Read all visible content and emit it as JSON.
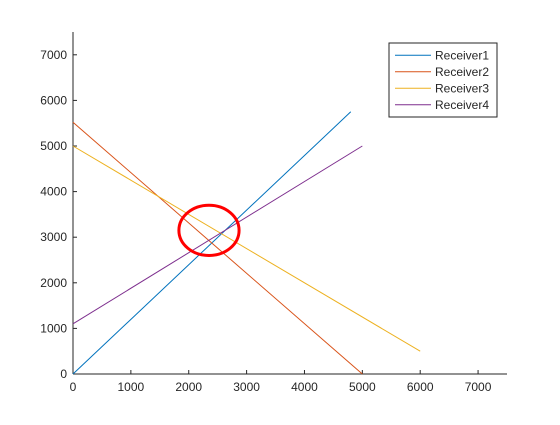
{
  "chart_data": {
    "type": "line",
    "xlim": [
      0,
      7500
    ],
    "ylim": [
      0,
      7500
    ],
    "x_ticks": [
      0,
      1000,
      2000,
      3000,
      4000,
      5000,
      6000,
      7000
    ],
    "y_ticks": [
      0,
      1000,
      2000,
      3000,
      4000,
      5000,
      6000,
      7000
    ],
    "x_tick_labels": [
      "0",
      "1000",
      "2000",
      "3000",
      "4000",
      "5000",
      "6000",
      "7000"
    ],
    "y_tick_labels": [
      "0",
      "1000",
      "2000",
      "3000",
      "4000",
      "5000",
      "6000",
      "7000"
    ],
    "grid": false,
    "legend_position": "top-right",
    "series": [
      {
        "name": "Receiver1",
        "color": "#0072BD",
        "points": [
          [
            0,
            0
          ],
          [
            4800,
            5750
          ]
        ]
      },
      {
        "name": "Receiver2",
        "color": "#D95319",
        "points": [
          [
            0,
            5520
          ],
          [
            5000,
            0
          ]
        ]
      },
      {
        "name": "Receiver3",
        "color": "#EDB120",
        "points": [
          [
            0,
            5000
          ],
          [
            6000,
            500
          ]
        ]
      },
      {
        "name": "Receiver4",
        "color": "#7E2F8E",
        "points": [
          [
            0,
            1100
          ],
          [
            5000,
            5000
          ]
        ]
      }
    ],
    "annotations": [
      {
        "type": "ellipse",
        "color": "#FF0000",
        "center": [
          2350,
          3150
        ],
        "rx": 520,
        "ry": 550
      }
    ]
  }
}
